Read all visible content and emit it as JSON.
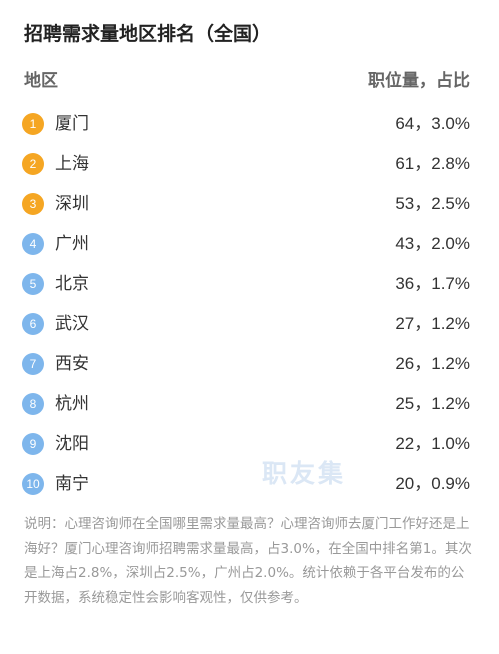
{
  "title": "招聘需求量地区排名（全国）",
  "header": {
    "left": "地区",
    "right": "职位量，占比"
  },
  "rows": [
    {
      "rank": "1",
      "city": "厦门",
      "value": "64，3.0%"
    },
    {
      "rank": "2",
      "city": "上海",
      "value": "61，2.8%"
    },
    {
      "rank": "3",
      "city": "深圳",
      "value": "53，2.5%"
    },
    {
      "rank": "4",
      "city": "广州",
      "value": "43，2.0%"
    },
    {
      "rank": "5",
      "city": "北京",
      "value": "36，1.7%"
    },
    {
      "rank": "6",
      "city": "武汉",
      "value": "27，1.2%"
    },
    {
      "rank": "7",
      "city": "西安",
      "value": "26，1.2%"
    },
    {
      "rank": "8",
      "city": "杭州",
      "value": "25，1.2%"
    },
    {
      "rank": "9",
      "city": "沈阳",
      "value": "22，1.0%"
    },
    {
      "rank": "10",
      "city": "南宁",
      "value": "20，0.9%"
    }
  ],
  "watermark": "职友集",
  "note": "说明：心理咨询师在全国哪里需求量最高？心理咨询师去厦门工作好还是上海好？厦门心理咨询师招聘需求量最高，占3.0%，在全国中排名第1。其次是上海占2.8%，深圳占2.5%，广州占2.0%。统计依赖于各平台发布的公开数据，系统稳定性会影响客观性，仅供参考。",
  "colors": {
    "rank_top": "#f5a623",
    "rank_rest": "#7eb6ec",
    "note_text": "#999999",
    "watermark": "#dbe7f5"
  }
}
